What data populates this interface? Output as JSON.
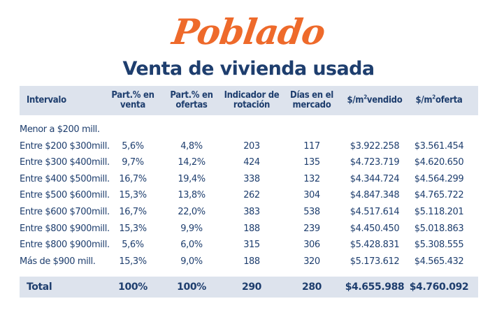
{
  "brand": "Poblado",
  "subtitle": "Venta de vivienda usada",
  "table": {
    "headers": {
      "intervalo": "Intervalo",
      "part_venta_1": "Part.% en",
      "part_venta_2": "venta",
      "part_ofertas_1": "Part.% en",
      "part_ofertas_2": "ofertas",
      "indicador_1": "Indicador de",
      "indicador_2": "rotación",
      "dias_1": "Días en el",
      "dias_2": "mercado",
      "m2_vendido_pre": "$/m",
      "m2_vendido_sup": "2",
      "m2_vendido_post": "vendido",
      "m2_oferta_pre": "$/m",
      "m2_oferta_sup": "2",
      "m2_oferta_post": "oferta"
    },
    "rows": [
      {
        "intervalo": "Menor a $200 mill.",
        "part_venta": "",
        "part_ofertas": "",
        "indicador": "",
        "dias": "",
        "m2_vendido": "",
        "m2_oferta": ""
      },
      {
        "intervalo": "Entre $200  $300mill.",
        "part_venta": "5,6%",
        "part_ofertas": "4,8%",
        "indicador": "203",
        "dias": "117",
        "m2_vendido": "$3.922.258",
        "m2_oferta": "$3.561.454"
      },
      {
        "intervalo": "Entre $300  $400mill.",
        "part_venta": "9,7%",
        "part_ofertas": "14,2%",
        "indicador": "424",
        "dias": "135",
        "m2_vendido": "$4.723.719",
        "m2_oferta": "$4.620.650"
      },
      {
        "intervalo": "Entre $400  $500mill.",
        "part_venta": "16,7%",
        "part_ofertas": "19,4%",
        "indicador": "338",
        "dias": "132",
        "m2_vendido": "$4.344.724",
        "m2_oferta": "$4.564.299"
      },
      {
        "intervalo": "Entre $500  $600mill.",
        "part_venta": "15,3%",
        "part_ofertas": "13,8%",
        "indicador": "262",
        "dias": "304",
        "m2_vendido": "$4.847.348",
        "m2_oferta": "$4.765.722"
      },
      {
        "intervalo": "Entre $600  $700mill.",
        "part_venta": "16,7%",
        "part_ofertas": "22,0%",
        "indicador": "383",
        "dias": "538",
        "m2_vendido": "$4.517.614",
        "m2_oferta": "$5.118.201"
      },
      {
        "intervalo": "Entre $800  $900mill.",
        "part_venta": "15,3%",
        "part_ofertas": "9,9%",
        "indicador": "188",
        "dias": "239",
        "m2_vendido": "$4.450.450",
        "m2_oferta": "$5.018.863"
      },
      {
        "intervalo": "Entre $800  $900mill.",
        "part_venta": "5,6%",
        "part_ofertas": "6,0%",
        "indicador": "315",
        "dias": "306",
        "m2_vendido": "$5.428.831",
        "m2_oferta": "$5.308.555"
      },
      {
        "intervalo": "Más de $900 mill.",
        "part_venta": "15,3%",
        "part_ofertas": "9,0%",
        "indicador": "188",
        "dias": "320",
        "m2_vendido": "$5.173.612",
        "m2_oferta": "$4.565.432"
      }
    ],
    "total": {
      "intervalo": "Total",
      "part_venta": "100%",
      "part_ofertas": "100%",
      "indicador": "290",
      "dias": "280",
      "m2_vendido": "$4.655.988",
      "m2_oferta": "$4.760.092"
    }
  },
  "colors": {
    "brand": "#ee6a2b",
    "text": "#1e3e6e",
    "band": "#dde3ed"
  }
}
